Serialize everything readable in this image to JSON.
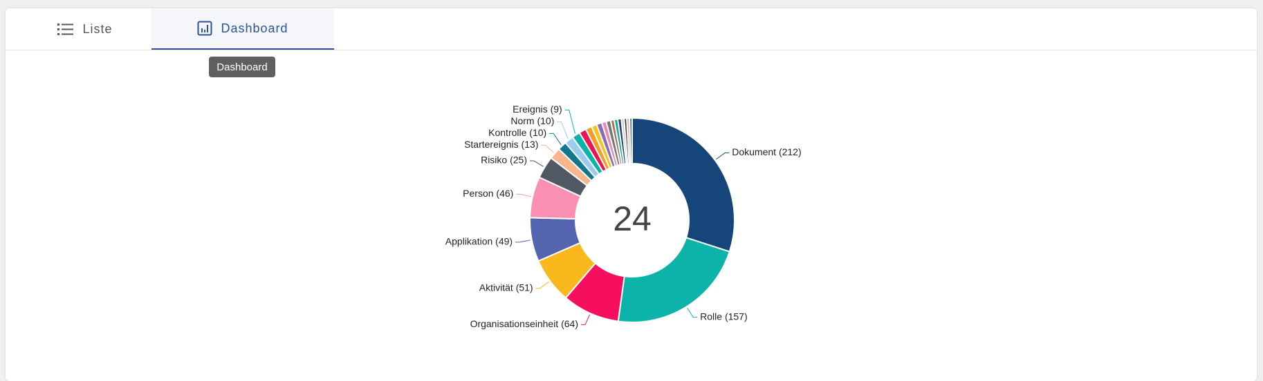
{
  "tabs": [
    {
      "label": "Liste"
    },
    {
      "label": "Dashboard"
    }
  ],
  "tooltip": "Dashboard",
  "chart_data": {
    "type": "donut",
    "center_value": 24,
    "categories": [
      "Dokument (212)",
      "Rolle (157)",
      "Organisationseinheit (64)",
      "Aktivität (51)",
      "Applikation (49)",
      "Person (46)",
      "Risiko (25)",
      "Startereignis (13)",
      "Kontrolle (10)",
      "Norm (10)",
      "Ereignis (9)",
      null,
      null,
      null,
      null,
      null,
      null,
      null,
      null,
      null,
      null,
      null,
      null,
      null
    ],
    "values": [
      212,
      157,
      64,
      51,
      49,
      46,
      25,
      13,
      10,
      10,
      9,
      8,
      7,
      6,
      6,
      5,
      5,
      4,
      4,
      4,
      3,
      3,
      3,
      3
    ],
    "colors": [
      "#154579",
      "#0bb3a8",
      "#f50f5e",
      "#f9b91d",
      "#5464ae",
      "#f990b2",
      "#4f5863",
      "#f8b68c",
      "#13778e",
      "#9ccbef",
      "#0bb3a8",
      "#e8174f",
      "#f59b26",
      "#f5c41d",
      "#8c6bb1",
      "#e889b9",
      "#777777",
      "#a5735a",
      "#19a79c",
      "#2c3e70",
      "#b9c9d9",
      "#333333",
      "#f4a582",
      "#4a80c2"
    ]
  }
}
